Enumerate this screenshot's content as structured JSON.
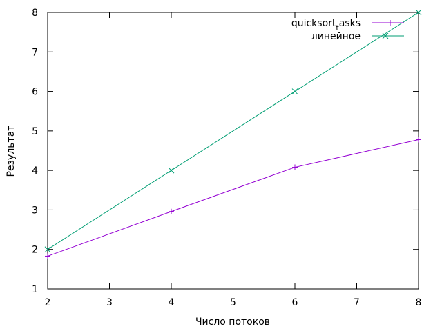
{
  "chart_data": {
    "type": "line",
    "title": "",
    "xlabel": "Число потоков",
    "ylabel": "Результат",
    "xlim": [
      2,
      8
    ],
    "ylim": [
      1,
      8
    ],
    "xticks": [
      2,
      3,
      4,
      5,
      6,
      7,
      8
    ],
    "yticks": [
      1,
      2,
      3,
      4,
      5,
      6,
      7,
      8
    ],
    "grid": false,
    "legend_position": "top-right",
    "series": [
      {
        "name_main": "quicksort",
        "name_sub": "t",
        "name_tail": "asks",
        "marker": "plus",
        "color": "#9400d3",
        "x": [
          2,
          4,
          6,
          8
        ],
        "y": [
          1.83,
          2.96,
          4.08,
          4.78
        ]
      },
      {
        "name": "линейное",
        "marker": "cross",
        "color": "#009e73",
        "x": [
          2,
          4,
          6,
          8
        ],
        "y": [
          2,
          4,
          6,
          8
        ]
      }
    ]
  }
}
